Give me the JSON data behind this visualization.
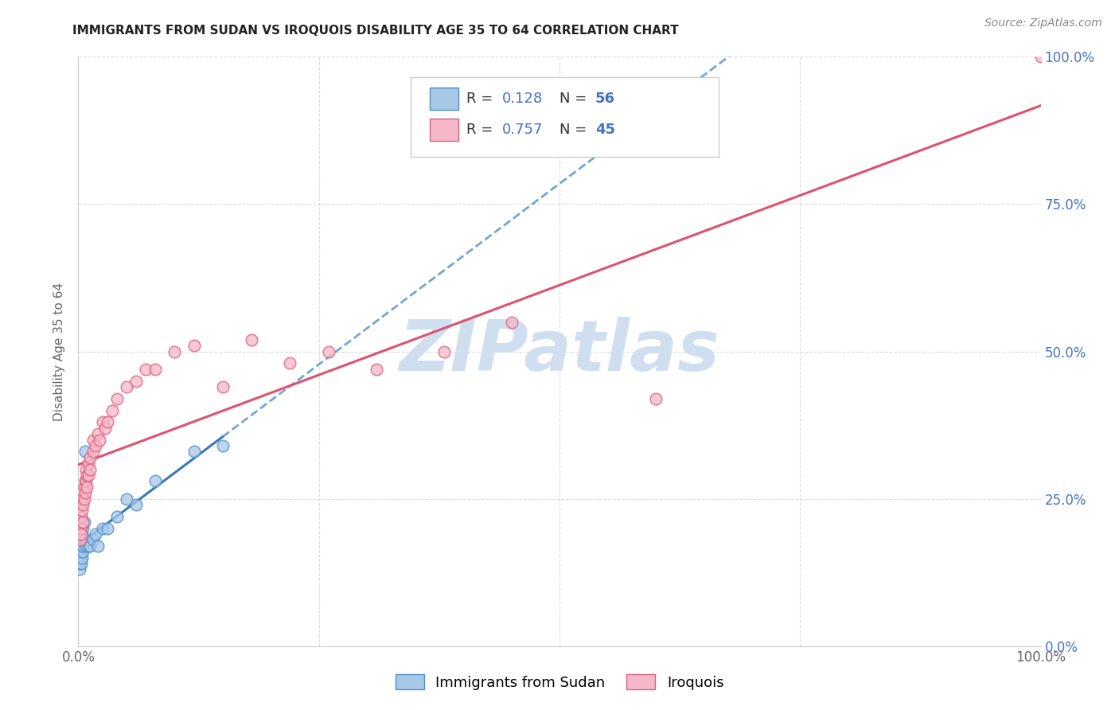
{
  "title": "IMMIGRANTS FROM SUDAN VS IROQUOIS DISABILITY AGE 35 TO 64 CORRELATION CHART",
  "source": "Source: ZipAtlas.com",
  "ylabel": "Disability Age 35 to 64",
  "legend_label1": "Immigrants from Sudan",
  "legend_label2": "Iroquois",
  "R1": 0.128,
  "N1": 56,
  "R2": 0.757,
  "N2": 45,
  "color_blue": "#a8c8e8",
  "color_pink": "#f4b8c8",
  "edge_blue": "#5090c8",
  "edge_pink": "#e06080",
  "line_blue_solid": "#3878b8",
  "line_pink_solid": "#e05070",
  "watermark_color": "#d0dff0",
  "sudan_x": [
    0.001,
    0.001,
    0.001,
    0.001,
    0.001,
    0.001,
    0.001,
    0.001,
    0.001,
    0.001,
    0.002,
    0.002,
    0.002,
    0.002,
    0.002,
    0.002,
    0.002,
    0.002,
    0.002,
    0.002,
    0.003,
    0.003,
    0.003,
    0.003,
    0.003,
    0.003,
    0.003,
    0.003,
    0.003,
    0.004,
    0.004,
    0.004,
    0.004,
    0.004,
    0.005,
    0.005,
    0.005,
    0.006,
    0.006,
    0.007,
    0.007,
    0.008,
    0.009,
    0.01,
    0.012,
    0.015,
    0.018,
    0.02,
    0.025,
    0.03,
    0.04,
    0.05,
    0.06,
    0.08,
    0.12,
    0.15
  ],
  "sudan_y": [
    0.17,
    0.18,
    0.16,
    0.15,
    0.19,
    0.2,
    0.14,
    0.21,
    0.13,
    0.16,
    0.17,
    0.18,
    0.16,
    0.15,
    0.19,
    0.2,
    0.14,
    0.21,
    0.17,
    0.16,
    0.18,
    0.17,
    0.15,
    0.19,
    0.16,
    0.2,
    0.14,
    0.17,
    0.18,
    0.16,
    0.18,
    0.17,
    0.15,
    0.19,
    0.16,
    0.2,
    0.17,
    0.18,
    0.21,
    0.18,
    0.33,
    0.17,
    0.18,
    0.17,
    0.17,
    0.18,
    0.19,
    0.17,
    0.2,
    0.2,
    0.22,
    0.25,
    0.24,
    0.28,
    0.33,
    0.34
  ],
  "iroquois_x": [
    0.002,
    0.002,
    0.003,
    0.003,
    0.004,
    0.004,
    0.005,
    0.005,
    0.006,
    0.006,
    0.007,
    0.007,
    0.008,
    0.008,
    0.009,
    0.009,
    0.01,
    0.01,
    0.012,
    0.012,
    0.015,
    0.015,
    0.018,
    0.02,
    0.022,
    0.025,
    0.028,
    0.03,
    0.035,
    0.04,
    0.05,
    0.06,
    0.07,
    0.08,
    0.1,
    0.12,
    0.15,
    0.18,
    0.22,
    0.26,
    0.31,
    0.38,
    0.45,
    0.6,
    1.0
  ],
  "iroquois_y": [
    0.18,
    0.2,
    0.22,
    0.19,
    0.25,
    0.23,
    0.21,
    0.24,
    0.27,
    0.25,
    0.28,
    0.26,
    0.3,
    0.28,
    0.29,
    0.27,
    0.31,
    0.29,
    0.3,
    0.32,
    0.33,
    0.35,
    0.34,
    0.36,
    0.35,
    0.38,
    0.37,
    0.38,
    0.4,
    0.42,
    0.44,
    0.45,
    0.47,
    0.47,
    0.5,
    0.51,
    0.44,
    0.52,
    0.48,
    0.5,
    0.47,
    0.5,
    0.55,
    0.42,
    1.0
  ],
  "xlim": [
    0.0,
    1.0
  ],
  "ylim": [
    0.0,
    1.0
  ],
  "xticks": [
    0.0,
    1.0
  ],
  "xticklabels": [
    "0.0%",
    "100.0%"
  ],
  "ytick_vals": [
    0.0,
    0.25,
    0.5,
    0.75,
    1.0
  ],
  "yticklabels_right": [
    "0.0%",
    "25.0%",
    "50.0%",
    "75.0%",
    "100.0%"
  ],
  "grid_color": "#dddddd",
  "title_fontsize": 11,
  "axis_label_color": "#666666",
  "right_tick_color": "#4472c4"
}
